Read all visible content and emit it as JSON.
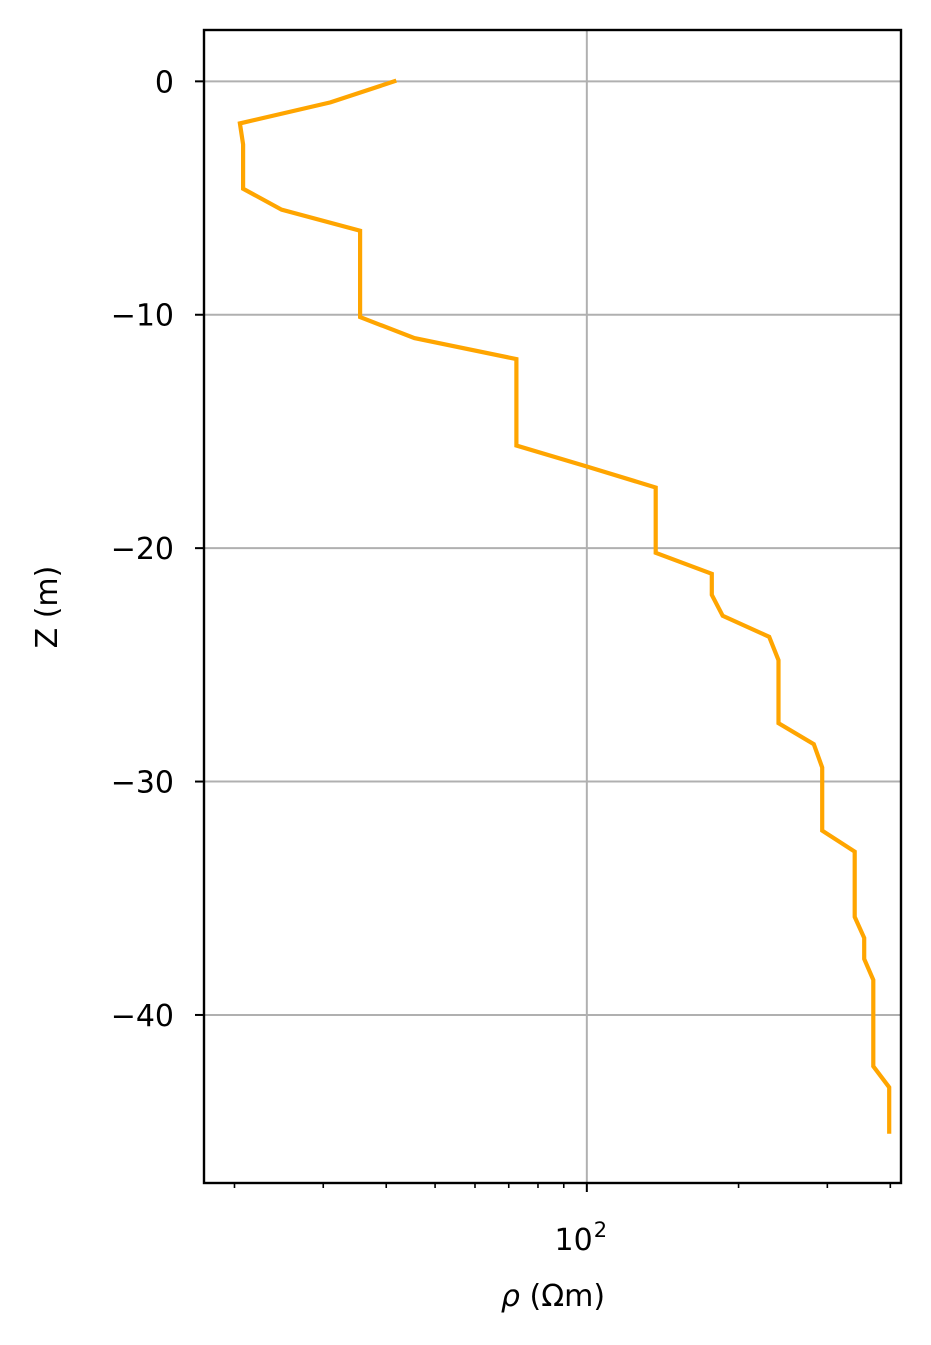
{
  "chart_data": {
    "type": "line",
    "title": "",
    "xlabel_symbol": "ρ",
    "xlabel_unit": " (Ωm)",
    "ylabel": "Z (m)",
    "x_scale": "log",
    "xlim": [
      17.4,
      420
    ],
    "ylim": [
      -47.2,
      2.2
    ],
    "grid": true,
    "x_major_ticks": [
      {
        "value": 100,
        "base": "10",
        "exp": "2"
      }
    ],
    "x_minor_ticks": [
      20,
      30,
      40,
      50,
      60,
      70,
      80,
      90,
      200,
      300,
      400
    ],
    "y_ticks": [
      {
        "value": 0,
        "label": "0"
      },
      {
        "value": -10,
        "label": "−10"
      },
      {
        "value": -20,
        "label": "−20"
      },
      {
        "value": -30,
        "label": "−30"
      },
      {
        "value": -40,
        "label": "−40"
      }
    ],
    "series": [
      {
        "color": "#FFA500",
        "points": [
          [
            41.5,
            0.0
          ],
          [
            31.0,
            -0.9
          ],
          [
            20.5,
            -1.8
          ],
          [
            20.8,
            -2.7
          ],
          [
            20.8,
            -4.6
          ],
          [
            24.8,
            -5.5
          ],
          [
            35.5,
            -6.4
          ],
          [
            35.5,
            -10.1
          ],
          [
            45.5,
            -11.0
          ],
          [
            72.5,
            -11.9
          ],
          [
            72.5,
            -15.6
          ],
          [
            100.0,
            -16.5
          ],
          [
            137.0,
            -17.4
          ],
          [
            137.0,
            -20.2
          ],
          [
            177.0,
            -21.1
          ],
          [
            177.0,
            -22.0
          ],
          [
            186.0,
            -22.9
          ],
          [
            230.0,
            -23.8
          ],
          [
            240.0,
            -24.8
          ],
          [
            240.0,
            -27.5
          ],
          [
            282.0,
            -28.4
          ],
          [
            293.0,
            -29.4
          ],
          [
            293.0,
            -32.1
          ],
          [
            340.0,
            -33.0
          ],
          [
            340.0,
            -35.8
          ],
          [
            355.0,
            -36.7
          ],
          [
            355.0,
            -37.6
          ],
          [
            370.0,
            -38.5
          ],
          [
            370.0,
            -42.2
          ],
          [
            398.0,
            -43.1
          ],
          [
            398.0,
            -45.0
          ]
        ]
      }
    ]
  }
}
